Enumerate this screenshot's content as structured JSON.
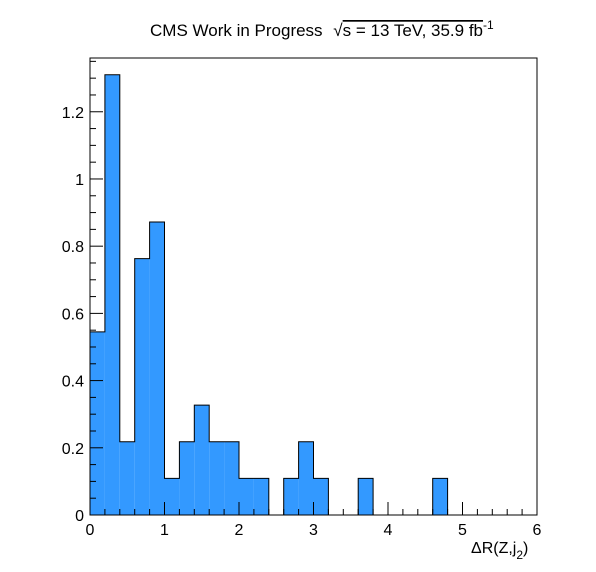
{
  "chart_data": {
    "type": "bar",
    "title_parts": {
      "experiment": "CMS Work in Progress",
      "sqrt_symbol": "√",
      "energy": "s = 13 TeV, 35.9 fb",
      "lumi_exponent": "-1"
    },
    "xlabel_parts": {
      "main": "ΔR(Z,j",
      "subscript": "2",
      "close": ")"
    },
    "ylabel": "",
    "xlim": [
      0,
      6
    ],
    "ylim": [
      0,
      1.36
    ],
    "bin_width": 0.2,
    "x_bin_edges_start": 0,
    "values": [
      0.545,
      1.31,
      0.218,
      0.763,
      0.872,
      0.109,
      0.218,
      0.327,
      0.218,
      0.218,
      0.109,
      0.109,
      0,
      0.109,
      0.218,
      0.109,
      0,
      0,
      0.109,
      0,
      0,
      0,
      0,
      0.109,
      0,
      0,
      0,
      0,
      0,
      0
    ],
    "x_ticks": [
      "0",
      "1",
      "2",
      "3",
      "4",
      "5",
      "6"
    ],
    "y_ticks": [
      "0",
      "0.2",
      "0.4",
      "0.6",
      "0.8",
      "1",
      "1.2"
    ],
    "fill_color": "#3399ff",
    "edge_color": "#000000",
    "grid": false,
    "legend": "none"
  }
}
